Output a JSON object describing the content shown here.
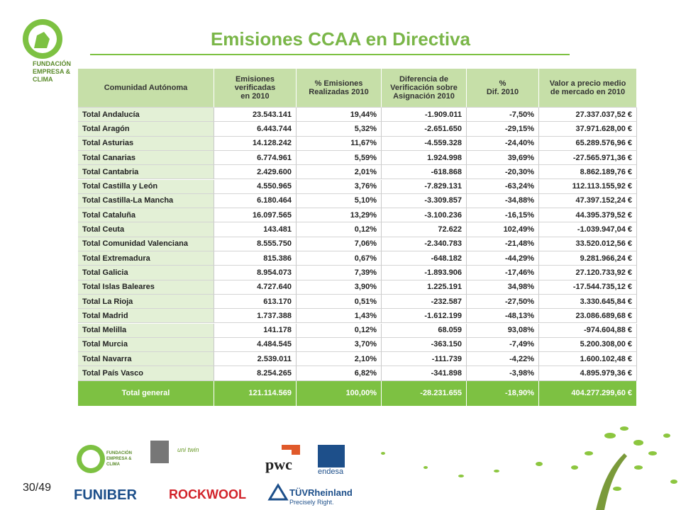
{
  "title": "Emisiones CCAA en Directiva",
  "logo": [
    "FUNDACIÓN",
    "EMPRESA &",
    "CLIMA"
  ],
  "page_number": "30/49",
  "table": {
    "header": [
      "Comunidad Autónoma",
      "Emisiones\nverificadas\nen 2010",
      "% Emisiones\nRealizadas 2010",
      "Diferencia de\nVerificación sobre\nAsignación 2010",
      "%\nDif. 2010",
      "Valor a precio medio\nde mercado en 2010"
    ],
    "rows": [
      [
        "Total Andalucía",
        "23.543.141",
        "19,44%",
        "-1.909.011",
        "-7,50%",
        "27.337.037,52 €"
      ],
      [
        "Total Aragón",
        "6.443.744",
        "5,32%",
        "-2.651.650",
        "-29,15%",
        "37.971.628,00 €"
      ],
      [
        "Total Asturias",
        "14.128.242",
        "11,67%",
        "-4.559.328",
        "-24,40%",
        "65.289.576,96 €"
      ],
      [
        "Total Canarias",
        "6.774.961",
        "5,59%",
        "1.924.998",
        "39,69%",
        "-27.565.971,36 €"
      ],
      [
        "Total Cantabria",
        "2.429.600",
        "2,01%",
        "-618.868",
        "-20,30%",
        "8.862.189,76 €"
      ],
      [
        "Total Castilla y León",
        "4.550.965",
        "3,76%",
        "-7.829.131",
        "-63,24%",
        "112.113.155,92 €"
      ],
      [
        "Total Castilla-La Mancha",
        "6.180.464",
        "5,10%",
        "-3.309.857",
        "-34,88%",
        "47.397.152,24 €"
      ],
      [
        "Total Cataluña",
        "16.097.565",
        "13,29%",
        "-3.100.236",
        "-16,15%",
        "44.395.379,52 €"
      ],
      [
        "Total Ceuta",
        "143.481",
        "0,12%",
        "72.622",
        "102,49%",
        "-1.039.947,04 €"
      ],
      [
        "Total Comunidad Valenciana",
        "8.555.750",
        "7,06%",
        "-2.340.783",
        "-21,48%",
        "33.520.012,56 €"
      ],
      [
        "Total Extremadura",
        "815.386",
        "0,67%",
        "-648.182",
        "-44,29%",
        "9.281.966,24 €"
      ],
      [
        "Total Galicia",
        "8.954.073",
        "7,39%",
        "-1.893.906",
        "-17,46%",
        "27.120.733,92 €"
      ],
      [
        "Total Islas Baleares",
        "4.727.640",
        "3,90%",
        "1.225.191",
        "34,98%",
        "-17.544.735,12 €"
      ],
      [
        "Total La Rioja",
        "613.170",
        "0,51%",
        "-232.587",
        "-27,50%",
        "3.330.645,84 €"
      ],
      [
        "Total Madrid",
        "1.737.388",
        "1,43%",
        "-1.612.199",
        "-48,13%",
        "23.086.689,68 €"
      ],
      [
        "Total Melilla",
        "141.178",
        "0,12%",
        "68.059",
        "93,08%",
        "-974.604,88 €"
      ],
      [
        "Total Murcia",
        "4.484.545",
        "3,70%",
        "-363.150",
        "-7,49%",
        "5.200.308,00 €"
      ],
      [
        "Total Navarra",
        "2.539.011",
        "2,10%",
        "-111.739",
        "-4,22%",
        "1.600.102,48 €"
      ],
      [
        "Total País Vasco",
        "8.254.265",
        "6,82%",
        "-341.898",
        "-3,98%",
        "4.895.979,36 €"
      ]
    ],
    "total": [
      "Total general",
      "121.114.569",
      "100,00%",
      "-28.231.655",
      "-18,90%",
      "404.277.299,60 €"
    ]
  },
  "partners": {
    "uni": "uni twin",
    "funiber": "FUNIBER",
    "rockwool": "ROCKWOOL",
    "pwc": "pwc",
    "endesa": "endesa",
    "tuv": "TÜVRheinland",
    "tuv_tag": "Precisely Right."
  }
}
